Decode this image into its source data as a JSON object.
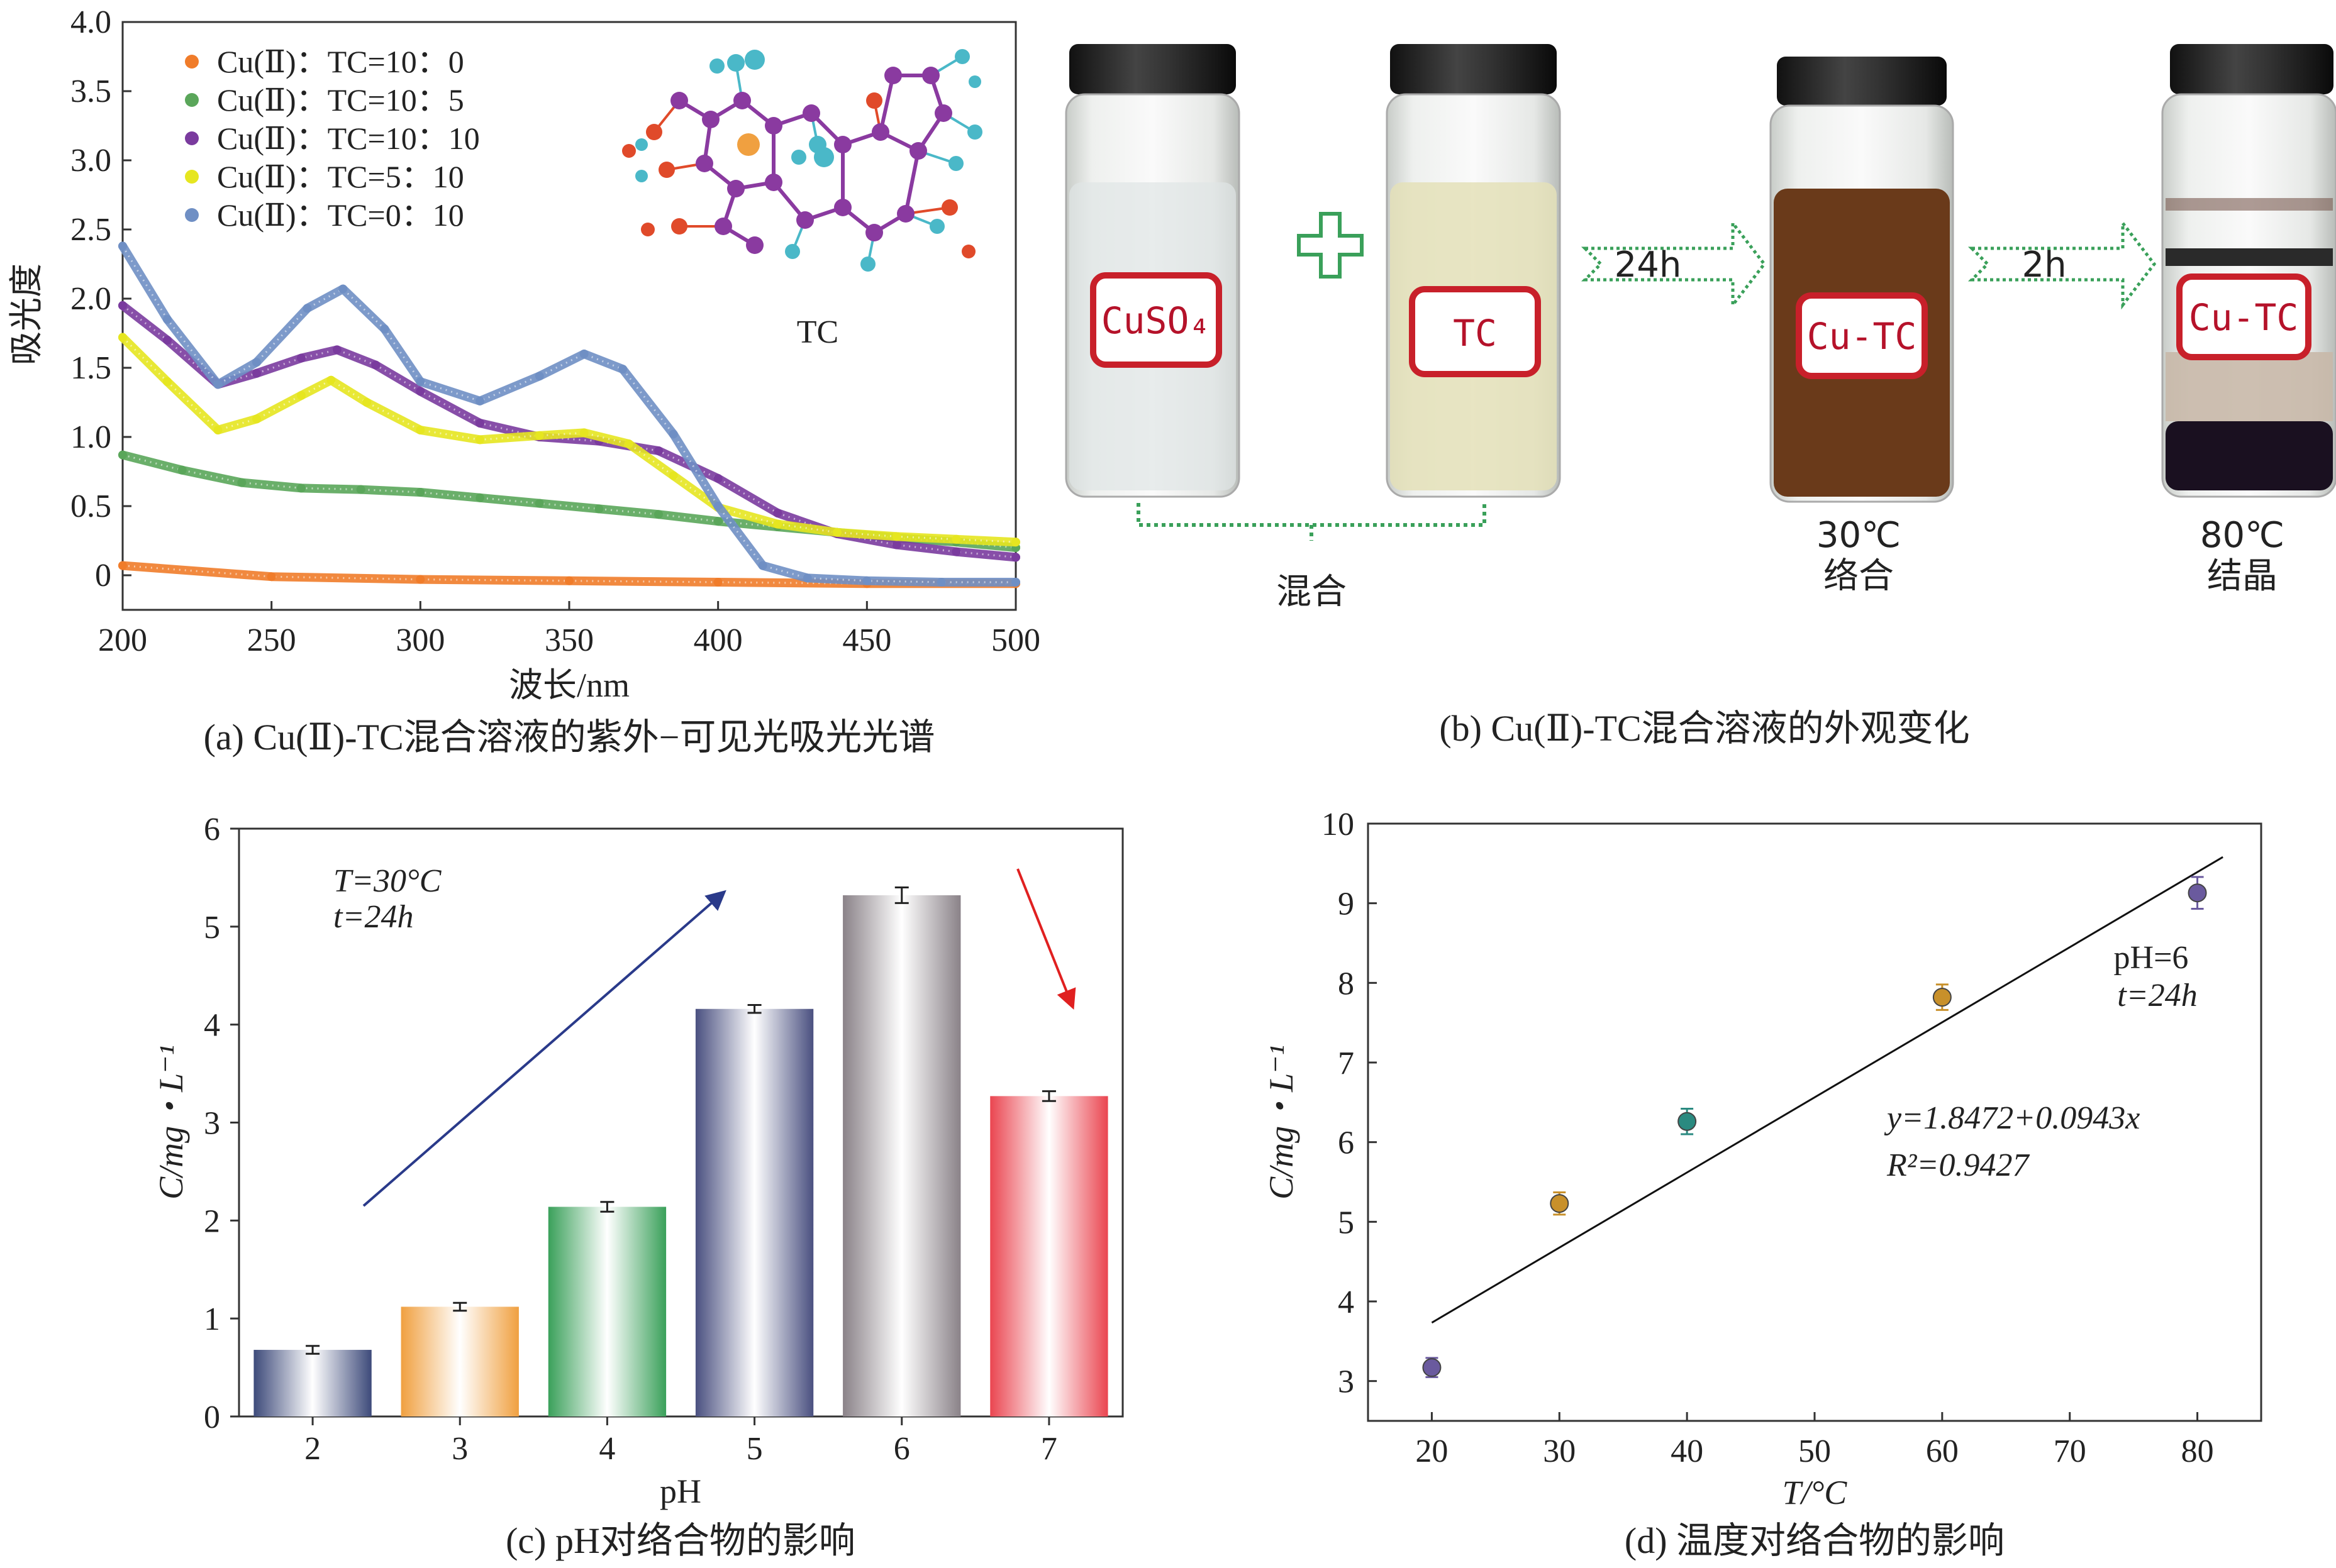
{
  "chart_data": [
    {
      "type": "line",
      "caption": "(a) Cu(Ⅱ)-TC混合溶液的紫外−可见光吸光光谱",
      "xlabel": "波长/nm",
      "ylabel": "吸光度",
      "xlim": [
        200,
        500
      ],
      "ylim": [
        -0.25,
        4.0
      ],
      "xticks": [
        200,
        250,
        300,
        350,
        400,
        450,
        500
      ],
      "yticks": [
        0,
        0.5,
        1.0,
        1.5,
        2.0,
        2.5,
        3.0,
        3.5,
        4.0
      ],
      "ytick_labels": [
        "0",
        "0.5",
        "1.0",
        "1.5",
        "2.0",
        "2.5",
        "3.0",
        "3.5",
        "4.0"
      ],
      "legend_position": "top-left",
      "inset_label": "TC",
      "series": [
        {
          "name": "Cu(Ⅱ)：TC=10：0",
          "color": "#f07c2a",
          "points": [
            [
              200,
              0.07
            ],
            [
              250,
              -0.01
            ],
            [
              300,
              -0.03
            ],
            [
              350,
              -0.04
            ],
            [
              400,
              -0.05
            ],
            [
              450,
              -0.06
            ],
            [
              500,
              -0.06
            ]
          ]
        },
        {
          "name": "Cu(Ⅱ)：TC=10：5",
          "color": "#5aa65a",
          "points": [
            [
              200,
              0.87
            ],
            [
              220,
              0.76
            ],
            [
              240,
              0.67
            ],
            [
              260,
              0.63
            ],
            [
              280,
              0.62
            ],
            [
              300,
              0.6
            ],
            [
              320,
              0.56
            ],
            [
              340,
              0.52
            ],
            [
              360,
              0.48
            ],
            [
              380,
              0.44
            ],
            [
              400,
              0.39
            ],
            [
              420,
              0.35
            ],
            [
              440,
              0.31
            ],
            [
              460,
              0.27
            ],
            [
              480,
              0.24
            ],
            [
              500,
              0.2
            ]
          ]
        },
        {
          "name": "Cu(Ⅱ)：TC=10：10",
          "color": "#7a3b9e",
          "points": [
            [
              200,
              1.95
            ],
            [
              215,
              1.7
            ],
            [
              232,
              1.38
            ],
            [
              245,
              1.46
            ],
            [
              260,
              1.57
            ],
            [
              272,
              1.63
            ],
            [
              285,
              1.52
            ],
            [
              300,
              1.33
            ],
            [
              320,
              1.1
            ],
            [
              340,
              1.0
            ],
            [
              360,
              0.97
            ],
            [
              380,
              0.9
            ],
            [
              400,
              0.7
            ],
            [
              420,
              0.45
            ],
            [
              440,
              0.3
            ],
            [
              460,
              0.22
            ],
            [
              480,
              0.17
            ],
            [
              500,
              0.13
            ]
          ]
        },
        {
          "name": "Cu(Ⅱ)：TC=5：10",
          "color": "#e6e620",
          "points": [
            [
              200,
              1.72
            ],
            [
              215,
              1.4
            ],
            [
              232,
              1.05
            ],
            [
              245,
              1.13
            ],
            [
              260,
              1.3
            ],
            [
              270,
              1.41
            ],
            [
              282,
              1.25
            ],
            [
              300,
              1.05
            ],
            [
              320,
              0.98
            ],
            [
              340,
              1.01
            ],
            [
              355,
              1.03
            ],
            [
              370,
              0.95
            ],
            [
              385,
              0.72
            ],
            [
              400,
              0.49
            ],
            [
              420,
              0.37
            ],
            [
              440,
              0.31
            ],
            [
              460,
              0.28
            ],
            [
              480,
              0.26
            ],
            [
              500,
              0.24
            ]
          ]
        },
        {
          "name": "Cu(Ⅱ)：TC=0：10",
          "color": "#6f8fc4",
          "points": [
            [
              200,
              2.38
            ],
            [
              215,
              1.85
            ],
            [
              232,
              1.38
            ],
            [
              245,
              1.54
            ],
            [
              262,
              1.93
            ],
            [
              274,
              2.07
            ],
            [
              288,
              1.78
            ],
            [
              300,
              1.4
            ],
            [
              320,
              1.26
            ],
            [
              340,
              1.44
            ],
            [
              355,
              1.6
            ],
            [
              368,
              1.49
            ],
            [
              385,
              1.02
            ],
            [
              400,
              0.5
            ],
            [
              415,
              0.07
            ],
            [
              430,
              -0.02
            ],
            [
              450,
              -0.04
            ],
            [
              475,
              -0.05
            ],
            [
              500,
              -0.05
            ]
          ]
        }
      ]
    },
    {
      "type": "bar",
      "caption": "(c) pH对络合物的影响",
      "xlabel": "pH",
      "ylabel": "C/mg・L⁻¹",
      "ylim": [
        0,
        6
      ],
      "yticks": [
        0,
        1,
        2,
        3,
        4,
        5,
        6
      ],
      "categories": [
        "2",
        "3",
        "4",
        "5",
        "6",
        "7"
      ],
      "values": [
        0.68,
        1.12,
        2.14,
        4.16,
        5.32,
        3.27
      ],
      "errors": [
        0.04,
        0.04,
        0.05,
        0.04,
        0.08,
        0.05
      ],
      "colors": [
        "#3d4a7a",
        "#f0a040",
        "#3aa05a",
        "#4a5080",
        "#8a8288",
        "#ea4550"
      ],
      "annotations": {
        "line1": "T=30°C",
        "line2": "t=24h"
      }
    },
    {
      "type": "scatter",
      "caption": "(d) 温度对络合物的影响",
      "xlabel": "T/°C",
      "ylabel": "C/mg・L⁻¹",
      "xlim": [
        15,
        85
      ],
      "ylim": [
        2.5,
        10
      ],
      "xticks": [
        20,
        30,
        40,
        50,
        60,
        70,
        80
      ],
      "yticks": [
        3,
        4,
        5,
        6,
        7,
        8,
        9,
        10
      ],
      "points": [
        {
          "x": 20,
          "y": 3.17,
          "err": 0.12,
          "color": "#6a5a9e"
        },
        {
          "x": 30,
          "y": 5.23,
          "err": 0.14,
          "color": "#c8902a"
        },
        {
          "x": 40,
          "y": 6.26,
          "err": 0.16,
          "color": "#2a8a80"
        },
        {
          "x": 60,
          "y": 7.82,
          "err": 0.16,
          "color": "#c8902a"
        },
        {
          "x": 80,
          "y": 9.13,
          "err": 0.2,
          "color": "#6a5a9e"
        }
      ],
      "fit": {
        "intercept": 1.8472,
        "slope": 0.0943,
        "x_range": [
          20,
          82
        ]
      },
      "annotations": {
        "ph": "pH=6",
        "time": "t=24h",
        "equation": "y=1.8472+0.0943x",
        "r2": "R²=0.9427"
      }
    }
  ],
  "panel_b": {
    "caption": "(b) Cu(Ⅱ)-TC混合溶液的外观变化",
    "vials": [
      {
        "label": "CuSO₄"
      },
      {
        "label": "TC"
      },
      {
        "label": "Cu-TC"
      },
      {
        "label": "Cu-TC"
      }
    ],
    "arrow1": "24h",
    "arrow2": "2h",
    "mix_label": "混合",
    "step3_line1": "30℃",
    "step3_line2": "络合",
    "step4_line1": "80℃",
    "step4_line2": "结晶"
  }
}
